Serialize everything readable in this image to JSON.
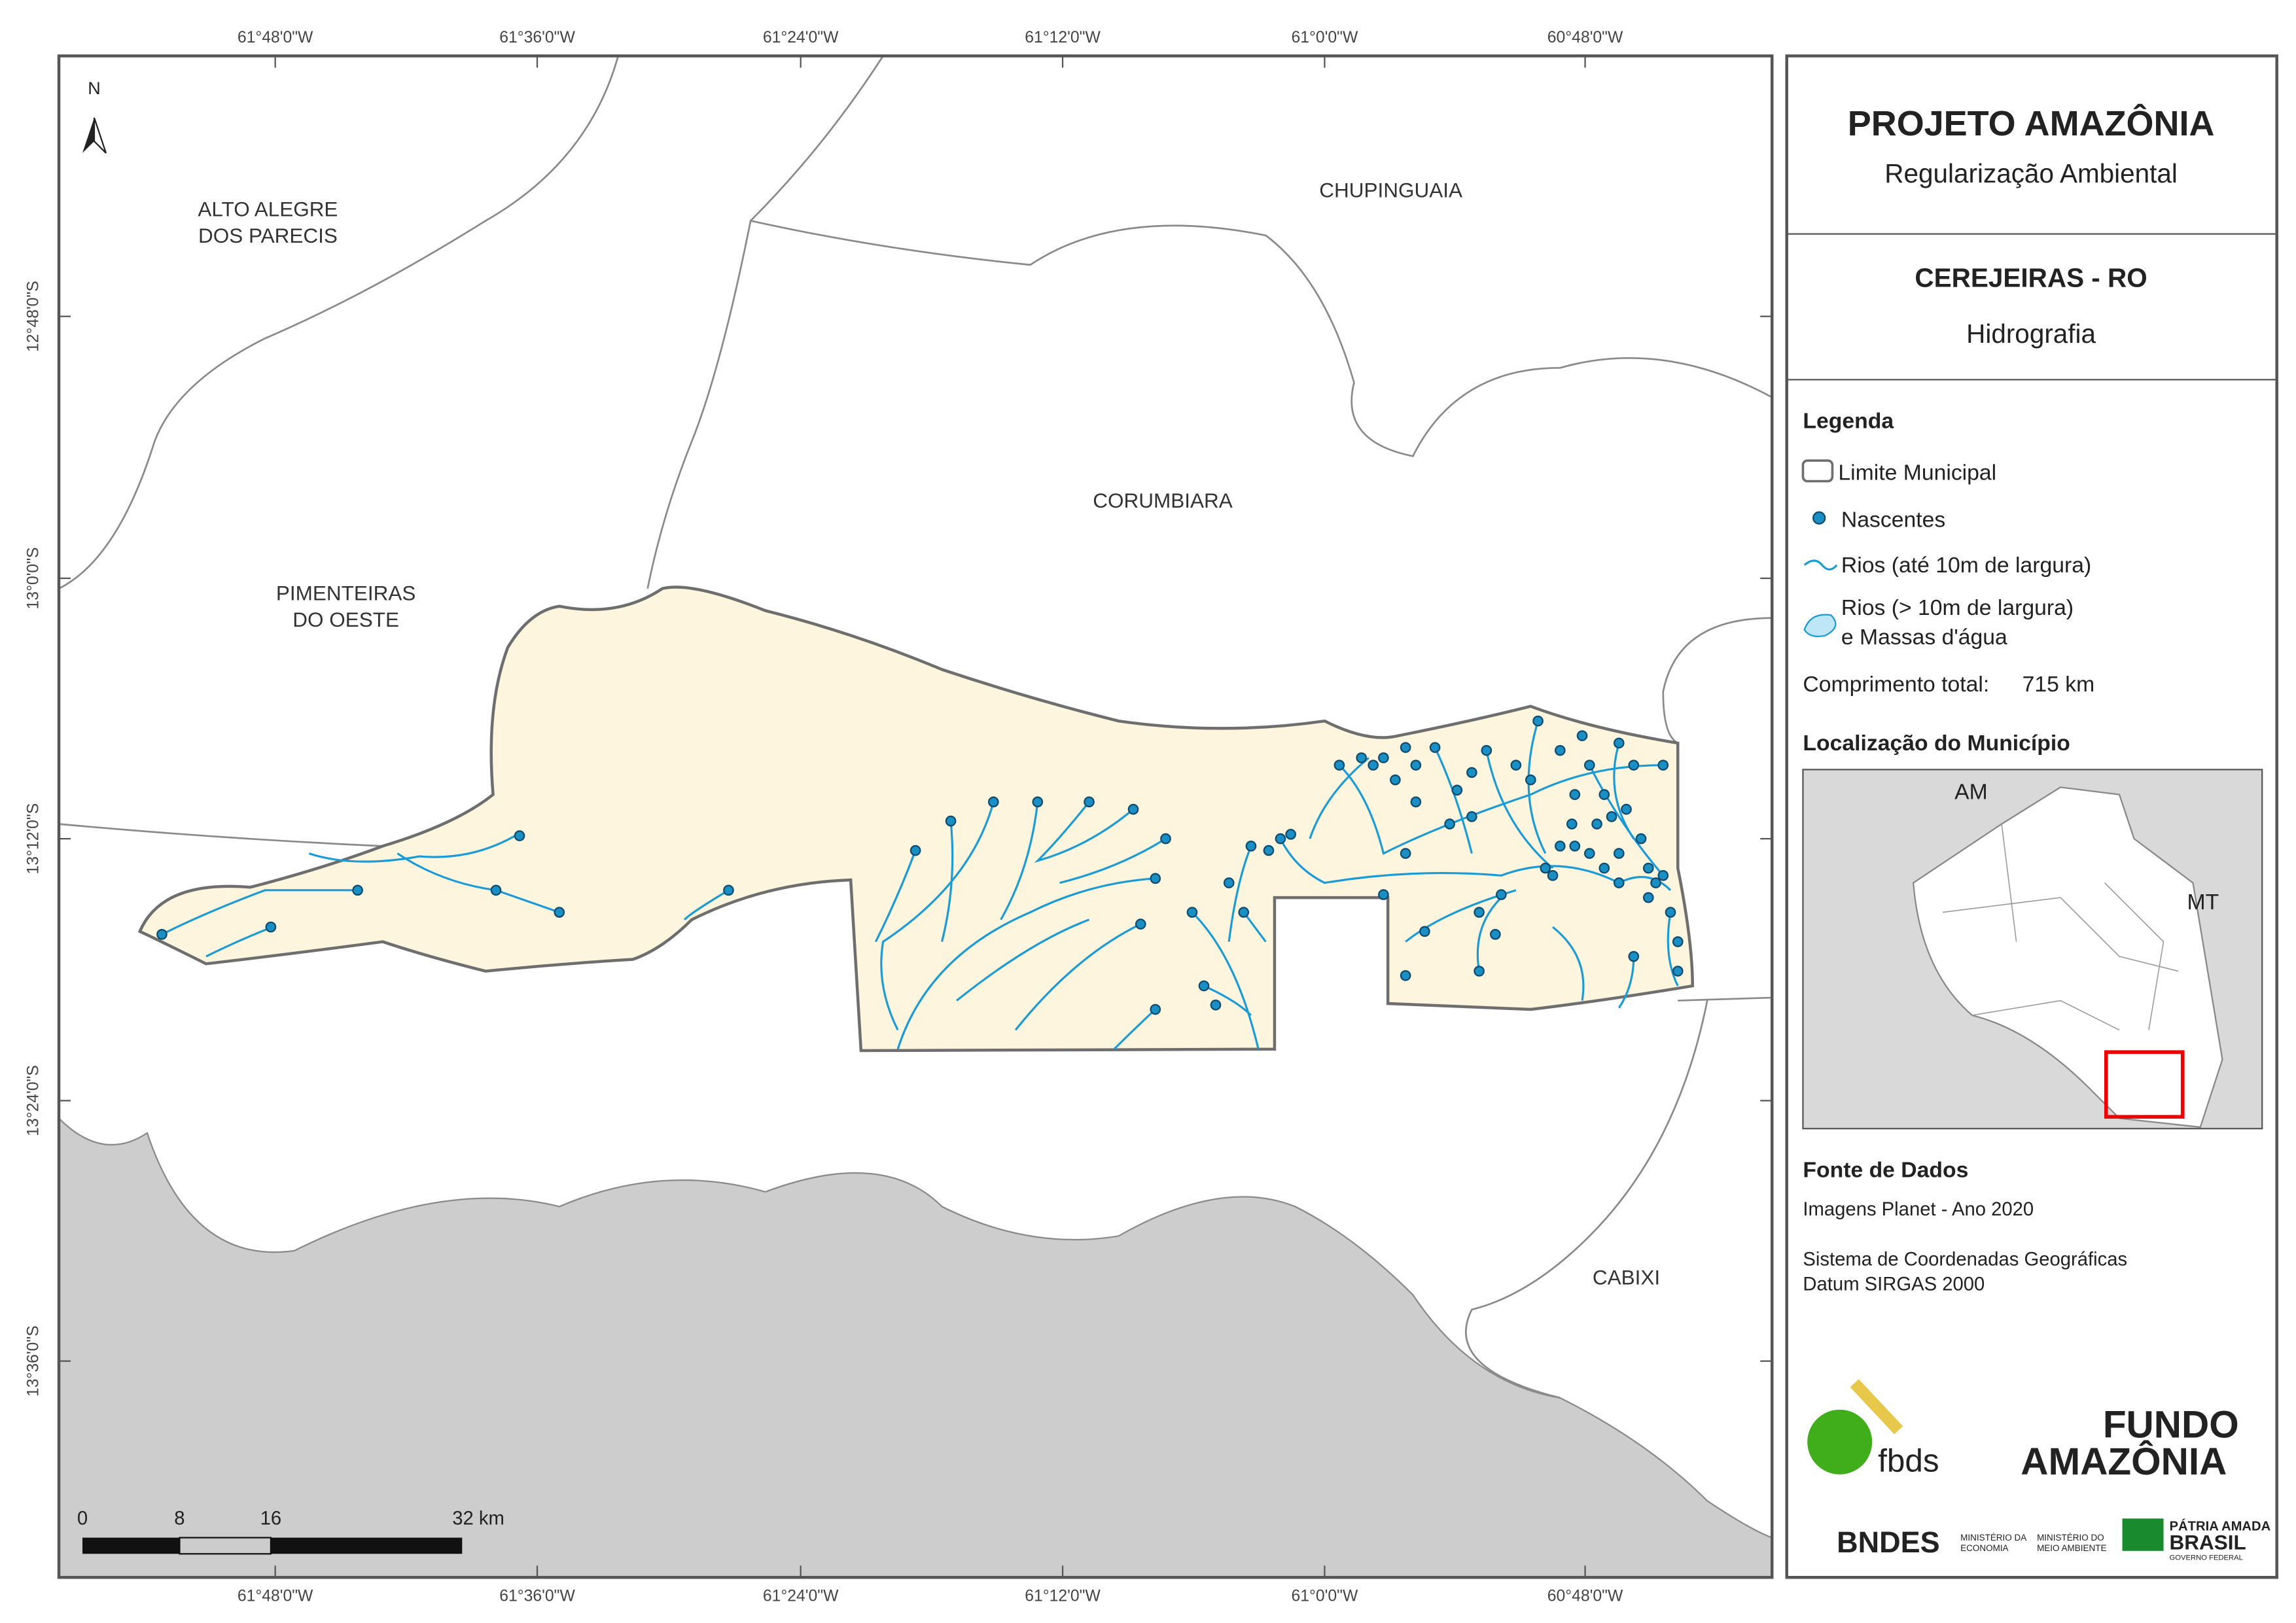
{
  "map": {
    "graticule": {
      "top": [
        "61°48'0\"W",
        "61°36'0\"W",
        "61°24'0\"W",
        "61°12'0\"W",
        "61°0'0\"W",
        "60°48'0\"W"
      ],
      "bottom": [
        "61°48'0\"W",
        "61°36'0\"W",
        "61°24'0\"W",
        "61°12'0\"W",
        "61°0'0\"W",
        "60°48'0\"W"
      ],
      "left": [
        "12°48'0\"S",
        "13°0'0\"S",
        "13°12'0\"S",
        "13°24'0\"S",
        "13°36'0\"S"
      ]
    },
    "north": "N",
    "places": [
      {
        "lines": [
          "ALTO ALEGRE",
          "DOS PARECIS"
        ]
      },
      {
        "lines": [
          "CHUPINGUAIA"
        ]
      },
      {
        "lines": [
          "CORUMBIARA"
        ]
      },
      {
        "lines": [
          "PIMENTEIRAS",
          "DO OESTE"
        ]
      },
      {
        "lines": [
          "CABIXI"
        ]
      }
    ],
    "scale_bar": [
      "0",
      "8",
      "16",
      "32 km"
    ]
  },
  "panel": {
    "title": "PROJETO AMAZÔNIA",
    "subtitle": "Regularização Ambiental",
    "municipality": "CEREJEIRAS - RO",
    "theme": "Hidrografia",
    "legend": {
      "title": "Legenda",
      "items": [
        "Limite Municipal",
        "Nascentes",
        "Rios (até 10m de largura)",
        "Rios (> 10m de largura)",
        "e Massas d'água"
      ],
      "total_label": "Comprimento total:",
      "total_value": "715 km"
    },
    "location": {
      "title": "Localização do Município",
      "labels": [
        "AM",
        "MT"
      ]
    },
    "sources": {
      "title": "Fonte de Dados",
      "lines": [
        "Imagens Planet - Ano 2020",
        "Sistema de Coordenadas Geográficas",
        "Datum SIRGAS 2000"
      ]
    },
    "logos": [
      "fbds",
      "FUNDO",
      "AMAZÔNIA",
      "BNDES",
      "MINISTÉRIO DA",
      "ECONOMIA",
      "MINISTÉRIO DO",
      "MEIO AMBIENTE",
      "PÁTRIA AMADA",
      "BRASIL",
      "GOVERNO FEDERAL"
    ]
  }
}
